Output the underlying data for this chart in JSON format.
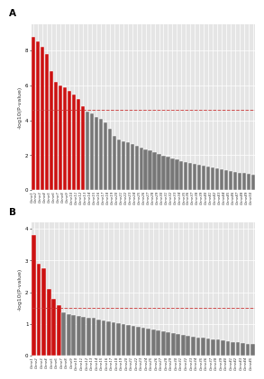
{
  "panel_A": {
    "label": "A",
    "values": [
      8.8,
      8.5,
      8.2,
      7.8,
      6.8,
      6.2,
      6.0,
      5.9,
      5.7,
      5.5,
      5.2,
      4.8,
      4.5,
      4.4,
      4.2,
      4.1,
      3.9,
      3.5,
      3.1,
      2.9,
      2.8,
      2.75,
      2.65,
      2.55,
      2.45,
      2.35,
      2.25,
      2.15,
      2.05,
      1.98,
      1.9,
      1.82,
      1.75,
      1.68,
      1.62,
      1.55,
      1.5,
      1.44,
      1.38,
      1.32,
      1.27,
      1.22,
      1.17,
      1.12,
      1.08,
      1.04,
      1.0,
      0.96,
      0.92,
      0.88
    ],
    "threshold": 4.6,
    "ylabel": "-log10(P-value)",
    "ylim": [
      0,
      9.5
    ],
    "yticks": [
      0,
      2,
      4,
      6,
      8
    ],
    "n_bars": 50
  },
  "panel_B": {
    "label": "B",
    "values": [
      3.8,
      2.9,
      2.75,
      2.1,
      1.8,
      1.6,
      1.35,
      1.3,
      1.28,
      1.25,
      1.22,
      1.2,
      1.18,
      1.15,
      1.12,
      1.08,
      1.05,
      1.02,
      1.0,
      0.97,
      0.94,
      0.91,
      0.88,
      0.85,
      0.82,
      0.79,
      0.76,
      0.73,
      0.7,
      0.68,
      0.65,
      0.63,
      0.6,
      0.58,
      0.56,
      0.54,
      0.52,
      0.5,
      0.48,
      0.46,
      0.44,
      0.42,
      0.4,
      0.38,
      0.36
    ],
    "threshold": 1.5,
    "ylabel": "-log10(P-value)",
    "ylim": [
      0,
      4.2
    ],
    "yticks": [
      0,
      1,
      2,
      3,
      4
    ],
    "n_bars": 45
  },
  "bar_color_red": "#cc1111",
  "bar_color_gray": "#777777",
  "threshold_color": "#cc3333",
  "background_color": "#e5e5e5",
  "fig_background": "#ffffff",
  "grid_color": "#ffffff",
  "bar_edge_color": "#ffffff",
  "label_fontsize": 2.8,
  "ylabel_fontsize": 4.5,
  "panel_label_fontsize": 7.5,
  "tick_fontsize": 4.0
}
